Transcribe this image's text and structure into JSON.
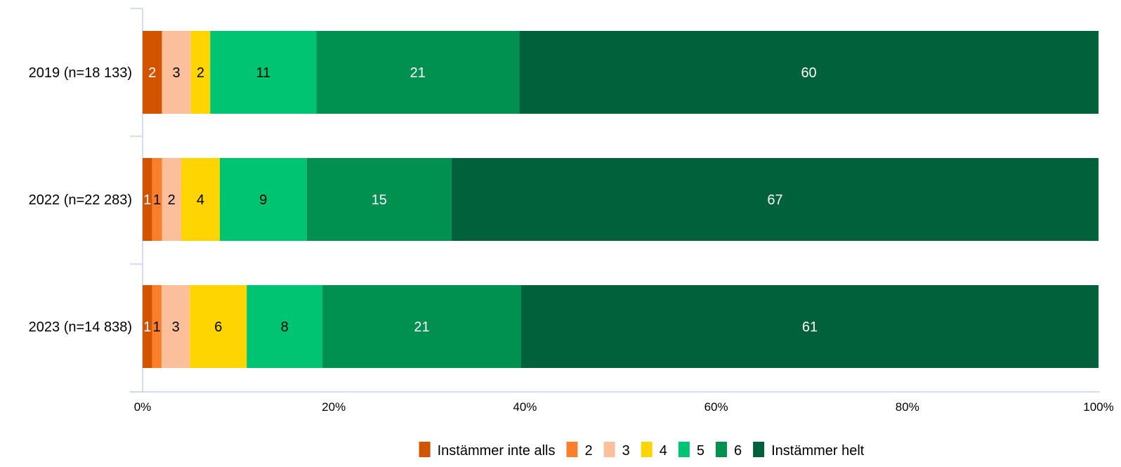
{
  "chart_data": {
    "type": "bar",
    "orientation": "horizontal",
    "stacked": true,
    "categories": [
      "2019 (n=18 133)",
      "2022 (n=22 283)",
      "2023 (n=14 838)"
    ],
    "series": [
      {
        "name": "Instämmer inte alls",
        "color": "#D35400",
        "label_color": "#ffffff",
        "values": [
          2,
          1,
          1
        ]
      },
      {
        "name": "2",
        "color": "#F97F2C",
        "label_color": "#000000",
        "values": [
          0,
          1,
          1
        ]
      },
      {
        "name": "3",
        "color": "#FBBF9B",
        "label_color": "#000000",
        "values": [
          3,
          2,
          3
        ]
      },
      {
        "name": "4",
        "color": "#FFD500",
        "label_color": "#000000",
        "values": [
          2,
          4,
          6
        ]
      },
      {
        "name": "5",
        "color": "#00C471",
        "label_color": "#000000",
        "values": [
          11,
          9,
          8
        ]
      },
      {
        "name": "6",
        "color": "#009150",
        "label_color": "#ffffff",
        "values": [
          21,
          15,
          21
        ]
      },
      {
        "name": "Instämmer helt",
        "color": "#00613A",
        "label_color": "#ffffff",
        "values": [
          60,
          67,
          61
        ]
      }
    ],
    "xlim": [
      0,
      100
    ],
    "xticks": [
      "0%",
      "20%",
      "40%",
      "60%",
      "80%",
      "100%"
    ],
    "legend_position": "bottom",
    "grid": false
  }
}
